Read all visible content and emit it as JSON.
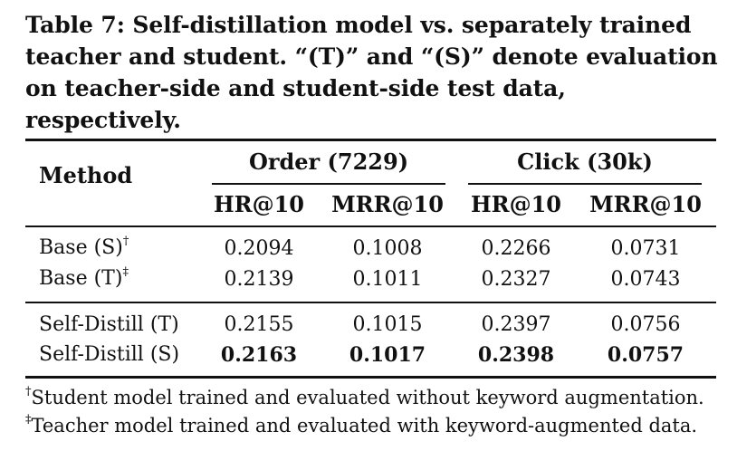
{
  "caption": "Table 7: Self-distillation model vs. separately trained teacher and student. “(T)” and “(S)” denote evaluation on teacher-side and student-side test data, respectively.",
  "table": {
    "method_header": "Method",
    "groups": [
      {
        "label": "Order (7229)"
      },
      {
        "label": "Click (30k)"
      }
    ],
    "subheaders": [
      "HR@10",
      "MRR@10",
      "HR@10",
      "MRR@10"
    ],
    "rows": [
      {
        "method": "Base (S)",
        "mark": "†",
        "values": [
          "0.2094",
          "0.1008",
          "0.2266",
          "0.0731"
        ]
      },
      {
        "method": "Base (T)",
        "mark": "‡",
        "values": [
          "0.2139",
          "0.1011",
          "0.2327",
          "0.0743"
        ]
      },
      {
        "method": "Self-Distill (T)",
        "mark": "",
        "values": [
          "0.2155",
          "0.1015",
          "0.2397",
          "0.0756"
        ]
      },
      {
        "method": "Self-Distill (S)",
        "mark": "",
        "values": [
          "0.2163",
          "0.1017",
          "0.2398",
          "0.0757"
        ]
      }
    ]
  },
  "footnotes": [
    {
      "mark": "†",
      "text": "Student model trained and evaluated without keyword augmentation."
    },
    {
      "mark": "‡",
      "text": "Teacher model trained and evaluated with keyword-augmented data."
    }
  ]
}
